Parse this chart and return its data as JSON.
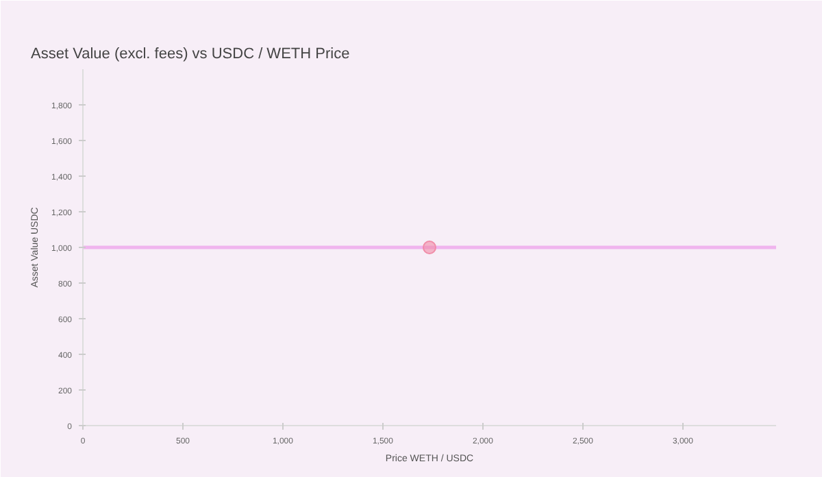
{
  "chart_data": {
    "type": "line",
    "title": "Asset Value (excl. fees) vs USDC / WETH Price",
    "xlabel": "Price WETH / USDC",
    "ylabel": "Asset Value USDC",
    "xlim": [
      0,
      3466
    ],
    "ylim": [
      0,
      2000
    ],
    "xticks": [
      0,
      {
        "value": 500,
        "label": "500"
      },
      {
        "value": 1000,
        "label": "1,000"
      },
      {
        "value": 1500,
        "label": "1,500"
      },
      {
        "value": 2000,
        "label": "2,000"
      },
      {
        "value": 2500,
        "label": "2,500"
      },
      {
        "value": 3000,
        "label": "3,000"
      }
    ],
    "yticks": [
      0,
      200,
      400,
      600,
      800,
      {
        "value": 1000,
        "label": "1,000"
      },
      {
        "value": 1200,
        "label": "1,200"
      },
      {
        "value": 1400,
        "label": "1,400"
      },
      {
        "value": 1600,
        "label": "1,600"
      },
      {
        "value": 1800,
        "label": "1,800"
      }
    ],
    "grid": false,
    "series": [
      {
        "color": "#f0b4ee",
        "x": [
          0,
          3466
        ],
        "values": [
          1000,
          1000
        ]
      },
      {
        "type": "scatter",
        "color": "#f08ca8",
        "x": [
          1733
        ],
        "values": [
          1000
        ]
      }
    ]
  }
}
